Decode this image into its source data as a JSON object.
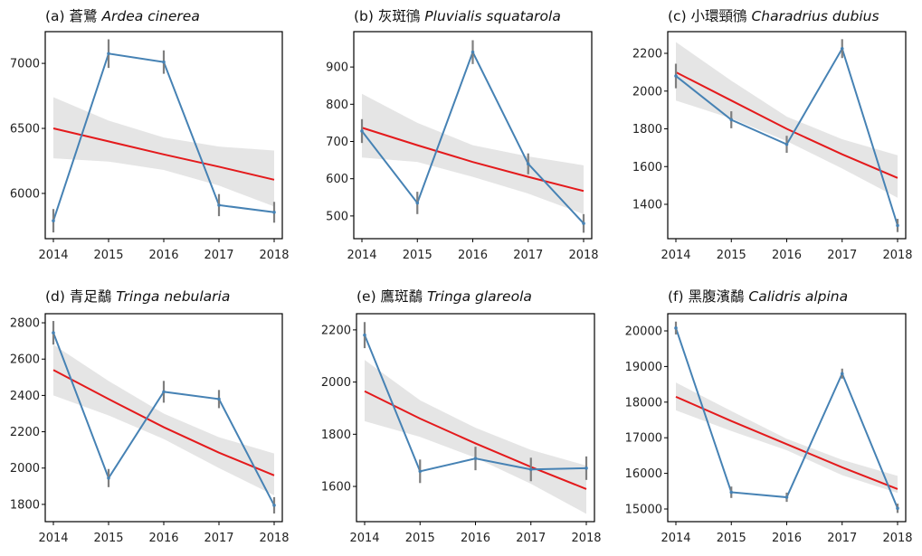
{
  "chart_data": [
    {
      "type": "line",
      "title_prefix": "(a) 蒼鷺",
      "title_sci": "Ardea cinerea",
      "x": [
        2014,
        2015,
        2016,
        2017,
        2018
      ],
      "values": [
        5790,
        7075,
        7010,
        5910,
        5855
      ],
      "error": [
        90,
        110,
        90,
        85,
        80
      ],
      "trend": [
        6500,
        6400,
        6300,
        6205,
        6105
      ],
      "ci_upper": [
        6740,
        6560,
        6430,
        6360,
        6330
      ],
      "ci_lower": [
        6270,
        6245,
        6180,
        6060,
        5900
      ],
      "ylim": [
        5652,
        7244
      ],
      "yticks": [
        6000,
        6500,
        7000
      ]
    },
    {
      "type": "line",
      "title_prefix": "(b) 灰斑鴴",
      "title_sci": "Pluvialis squatarola",
      "x": [
        2014,
        2015,
        2016,
        2017,
        2018
      ],
      "values": [
        728,
        535,
        940,
        640,
        480
      ],
      "error": [
        32,
        30,
        32,
        28,
        25
      ],
      "trend": [
        737,
        690,
        645,
        605,
        567
      ],
      "ci_upper": [
        828,
        750,
        690,
        660,
        636
      ],
      "ci_lower": [
        657,
        645,
        605,
        560,
        505
      ],
      "ylim": [
        439,
        995
      ],
      "yticks": [
        500,
        600,
        700,
        800,
        900
      ]
    },
    {
      "type": "line",
      "title_prefix": "(c) 小環頸鴴",
      "title_sci": "Charadrius dubius",
      "x": [
        2014,
        2015,
        2016,
        2017,
        2018
      ],
      "values": [
        2080,
        1848,
        1718,
        2225,
        1288
      ],
      "error": [
        65,
        45,
        45,
        50,
        35
      ],
      "trend": [
        2100,
        1950,
        1800,
        1665,
        1540
      ],
      "ci_upper": [
        2260,
        2055,
        1865,
        1745,
        1660
      ],
      "ci_lower": [
        1950,
        1855,
        1735,
        1590,
        1435
      ],
      "ylim": [
        1218,
        2315
      ],
      "yticks": [
        1400,
        1600,
        1800,
        2000,
        2200
      ]
    },
    {
      "type": "line",
      "title_prefix": "(d) 青足鷸",
      "title_sci": "Tringa nebularia",
      "x": [
        2014,
        2015,
        2016,
        2017,
        2018
      ],
      "values": [
        2745,
        1945,
        2420,
        2380,
        1795
      ],
      "error": [
        65,
        50,
        60,
        50,
        45
      ],
      "trend": [
        2540,
        2380,
        2225,
        2085,
        1960
      ],
      "ci_upper": [
        2680,
        2480,
        2300,
        2170,
        2080
      ],
      "ci_lower": [
        2400,
        2290,
        2160,
        2000,
        1850
      ],
      "ylim": [
        1705,
        2850
      ],
      "yticks": [
        1800,
        2000,
        2200,
        2400,
        2600,
        2800
      ]
    },
    {
      "type": "line",
      "title_prefix": "(e) 鷹斑鷸",
      "title_sci": "Tringa glareola",
      "x": [
        2014,
        2015,
        2016,
        2017,
        2018
      ],
      "values": [
        2180,
        1658,
        1707,
        1665,
        1670
      ],
      "error": [
        50,
        45,
        45,
        45,
        45
      ],
      "trend": [
        1965,
        1860,
        1765,
        1675,
        1590
      ],
      "ci_upper": [
        2085,
        1930,
        1825,
        1740,
        1680
      ],
      "ci_lower": [
        1850,
        1790,
        1710,
        1610,
        1495
      ],
      "ylim": [
        1465,
        2262
      ],
      "yticks": [
        1600,
        1800,
        2000,
        2200
      ]
    },
    {
      "type": "line",
      "title_prefix": "(f) 黑腹濱鷸",
      "title_sci": "Calidris alpina",
      "x": [
        2014,
        2015,
        2016,
        2017,
        2018
      ],
      "values": [
        20080,
        15470,
        15330,
        18800,
        15020
      ],
      "error": [
        180,
        160,
        130,
        140,
        130
      ],
      "trend": [
        18150,
        17470,
        16820,
        16170,
        15560
      ],
      "ci_upper": [
        18550,
        17750,
        16970,
        16380,
        15930
      ],
      "ci_lower": [
        17770,
        17190,
        16650,
        15950,
        15450
      ],
      "ylim": [
        14645,
        20482
      ],
      "yticks": [
        15000,
        16000,
        17000,
        18000,
        19000,
        20000
      ]
    }
  ],
  "colors": {
    "series": "#4682b4",
    "trend": "#e41a1c",
    "ci": "#e5e5e5",
    "errorbar": "#7f7f7f"
  }
}
